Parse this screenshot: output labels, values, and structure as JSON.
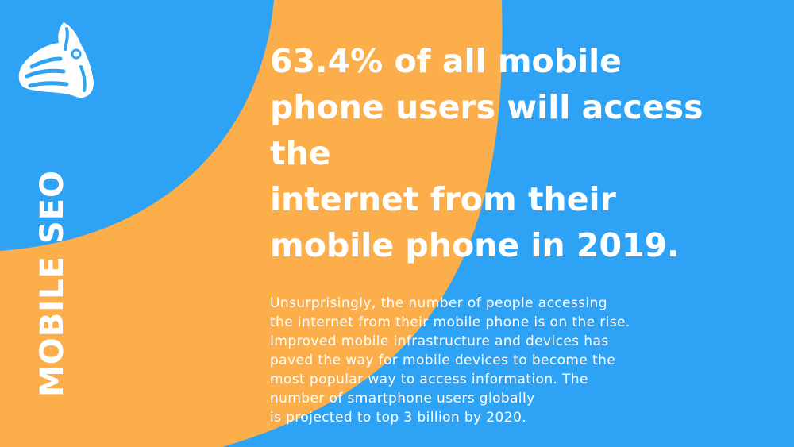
{
  "colors": {
    "background": "#2ea3f5",
    "accent_arc": "#fbae4a",
    "text": "#ffffff"
  },
  "logo": {
    "icon": "zebra-head-icon"
  },
  "side_title": "MOBILE SEO",
  "headline_lines": [
    "63.4% of all mobile",
    "phone users will access",
    "the",
    "internet from their",
    "mobile phone in 2019."
  ],
  "body_lines": [
    "Unsurprisingly, the number of people accessing",
    "the internet from their mobile phone is on the rise.",
    "Improved mobile infrastructure and devices has",
    "paved the way for mobile devices to become the",
    "most popular way to access information. The",
    "number of smartphone users globally",
    "is projected to top 3 billion by 2020."
  ]
}
